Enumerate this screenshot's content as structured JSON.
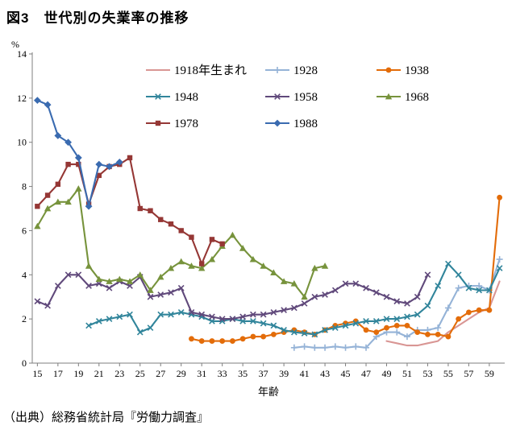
{
  "title": "図3　世代別の失業率の推移",
  "source": "（出典）総務省統計局『労働力調査』",
  "chart_data": {
    "type": "line",
    "title": "図3　世代別の失業率の推移",
    "xlabel": "年齢",
    "ylabel": "%",
    "xlim": [
      14.5,
      60.5
    ],
    "ylim": [
      0,
      14
    ],
    "yticks": [
      0,
      2,
      4,
      6,
      8,
      10,
      12,
      14
    ],
    "xticks": [
      15,
      17,
      19,
      21,
      23,
      25,
      27,
      29,
      31,
      33,
      35,
      37,
      39,
      41,
      43,
      45,
      47,
      49,
      51,
      53,
      55,
      57,
      59
    ],
    "grid": false,
    "legend_position": "top-inside",
    "legend_columns": 3,
    "series": [
      {
        "name": "1918年生まれ",
        "color": "#d99694",
        "marker": "none",
        "start_age": 49,
        "values": [
          1.0,
          0.9,
          0.8,
          0.8,
          0.9,
          1.0,
          1.4,
          1.7,
          2.0,
          2.3,
          2.5,
          3.7
        ]
      },
      {
        "name": "1928",
        "color": "#95b3d7",
        "marker": "plus",
        "start_age": 40,
        "values": [
          0.7,
          0.75,
          0.7,
          0.7,
          0.75,
          0.7,
          0.75,
          0.7,
          1.2,
          1.4,
          1.4,
          1.2,
          1.5,
          1.5,
          1.6,
          2.5,
          3.4,
          3.5,
          3.5,
          3.3,
          4.7
        ]
      },
      {
        "name": "1938",
        "color": "#e36c09",
        "marker": "circle",
        "start_age": 30,
        "values": [
          1.1,
          1.0,
          1.0,
          1.0,
          1.0,
          1.1,
          1.2,
          1.2,
          1.3,
          1.4,
          1.5,
          1.4,
          1.3,
          1.5,
          1.7,
          1.8,
          1.9,
          1.5,
          1.4,
          1.6,
          1.7,
          1.7,
          1.4,
          1.3,
          1.3,
          1.2,
          2.0,
          2.3,
          2.4,
          2.4,
          7.5
        ]
      },
      {
        "name": "1948",
        "color": "#31859b",
        "marker": "x",
        "start_age": 20,
        "values": [
          1.7,
          1.9,
          2.0,
          2.1,
          2.2,
          1.4,
          1.6,
          2.2,
          2.2,
          2.3,
          2.2,
          2.1,
          1.9,
          1.9,
          2.0,
          1.9,
          1.9,
          1.8,
          1.7,
          1.5,
          1.4,
          1.35,
          1.3,
          1.5,
          1.6,
          1.7,
          1.8,
          1.9,
          1.9,
          2.0,
          2.0,
          2.1,
          2.2,
          2.6,
          3.5,
          4.5,
          4.0,
          3.4,
          3.3,
          3.3,
          4.3
        ]
      },
      {
        "name": "1958",
        "color": "#60497b",
        "marker": "x",
        "start_age": 15,
        "values": [
          2.8,
          2.6,
          3.5,
          4.0,
          4.0,
          3.5,
          3.6,
          3.4,
          3.7,
          3.5,
          3.9,
          3.0,
          3.1,
          3.2,
          3.4,
          2.3,
          2.2,
          2.1,
          2.0,
          2.0,
          2.1,
          2.2,
          2.2,
          2.3,
          2.4,
          2.5,
          2.7,
          3.0,
          3.1,
          3.3,
          3.6,
          3.6,
          3.4,
          3.2,
          3.0,
          2.8,
          2.7,
          3.0,
          4.0
        ]
      },
      {
        "name": "1968",
        "color": "#77933c",
        "marker": "triangle",
        "start_age": 15,
        "values": [
          6.2,
          7.0,
          7.3,
          7.3,
          7.9,
          4.4,
          3.8,
          3.7,
          3.8,
          3.7,
          4.0,
          3.3,
          3.9,
          4.3,
          4.6,
          4.4,
          4.3,
          4.7,
          5.3,
          5.8,
          5.2,
          4.7,
          4.4,
          4.1,
          3.7,
          3.6,
          3.0,
          4.3,
          4.4
        ]
      },
      {
        "name": "1978",
        "color": "#953735",
        "marker": "square",
        "start_age": 15,
        "values": [
          7.1,
          7.6,
          8.1,
          9.0,
          9.0,
          7.2,
          8.5,
          8.9,
          9.0,
          9.3,
          7.0,
          6.9,
          6.5,
          6.3,
          6.0,
          5.7,
          4.5,
          5.6,
          5.4
        ]
      },
      {
        "name": "1988",
        "color": "#3a6bb0",
        "marker": "diamond",
        "start_age": 15,
        "values": [
          11.9,
          11.7,
          10.3,
          10.0,
          9.3,
          7.1,
          9.0,
          8.9,
          9.1
        ]
      }
    ]
  }
}
